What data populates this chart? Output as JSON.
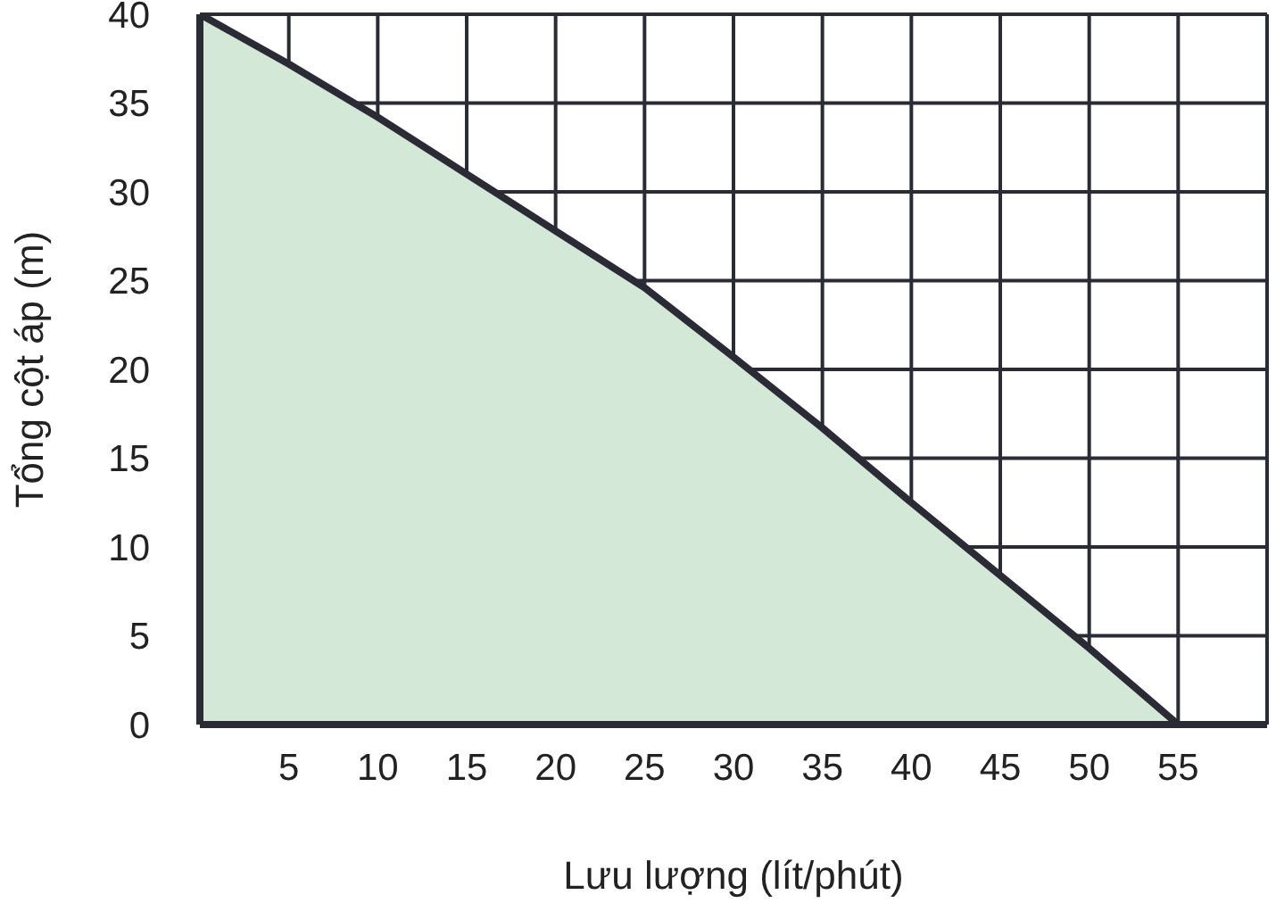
{
  "chart_data": {
    "type": "area",
    "xlabel": "Lưu lượng (lít/phút)",
    "ylabel": "Tổng cột áp (m)",
    "x": [
      0,
      5,
      10,
      15,
      20,
      25,
      30,
      35,
      40,
      45,
      50,
      55
    ],
    "series": [
      {
        "color": "#d3e8d6",
        "values": [
          40,
          37.2,
          34.2,
          31,
          27.8,
          24.6,
          20.7,
          16.7,
          12.5,
          8.4,
          4.3,
          0
        ]
      }
    ],
    "xlim": [
      0,
      60
    ],
    "ylim": [
      0,
      40
    ],
    "xticks": [
      {
        "value": 0,
        "label": null
      },
      5,
      10,
      15,
      20,
      25,
      30,
      35,
      40,
      45,
      50,
      55,
      {
        "value": 60,
        "label": null
      }
    ],
    "yticks": [
      0,
      5,
      10,
      15,
      20,
      25,
      30,
      35,
      40
    ],
    "grid": true
  }
}
